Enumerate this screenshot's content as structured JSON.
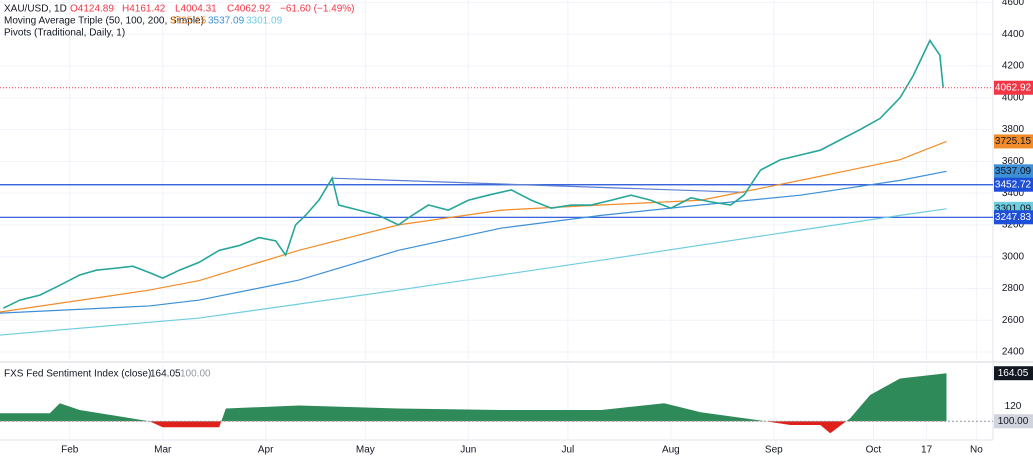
{
  "chart_data": [
    {
      "type": "line",
      "title": "XAU/USD, 1D",
      "annotations": [
        "O4124.89",
        "H4161.42",
        "L4004.31",
        "C4062.92",
        "−61.60 (−1.49%)"
      ],
      "indicator_label": "Moving Average Triple (50, 100, 200, Simple)",
      "pivot_label": "Pivots (Traditional, Daily, 1)",
      "xlim": [
        10,
        309
      ],
      "xticks": [
        {
          "value": 31,
          "label": "Feb"
        },
        {
          "value": 59,
          "label": "Mar"
        },
        {
          "value": 90,
          "label": "Apr"
        },
        {
          "value": 120,
          "label": "May"
        },
        {
          "value": 151,
          "label": "Jun"
        },
        {
          "value": 181,
          "label": "Jul"
        },
        {
          "value": 212,
          "label": "Aug"
        },
        {
          "value": 243,
          "label": "Sep"
        },
        {
          "value": 273,
          "label": "Oct"
        },
        {
          "value": 289,
          "label": "17"
        },
        {
          "value": 304,
          "label": "No"
        }
      ],
      "ylim": [
        2350,
        4615
      ],
      "yticks": [
        2400,
        2600,
        2800,
        3000,
        3200,
        3400,
        3600,
        3800,
        4000,
        4200,
        4400,
        4600
      ],
      "grid": true,
      "series": [
        {
          "color": "#26a69a",
          "x": [
            11,
            16,
            22,
            28,
            34,
            39,
            45,
            50,
            55,
            59,
            64,
            70,
            76,
            82,
            88,
            93,
            96,
            99,
            102,
            106,
            110,
            112,
            118,
            124,
            130,
            133,
            139,
            145,
            151,
            157,
            164,
            170,
            176,
            182,
            188,
            194,
            200,
            206,
            212,
            218,
            224,
            230,
            234,
            239,
            245,
            251,
            257,
            263,
            269,
            275,
            281,
            285,
            290,
            293,
            294
          ],
          "values": [
            2676,
            2727,
            2758,
            2820,
            2885,
            2915,
            2928,
            2940,
            2900,
            2865,
            2915,
            2965,
            3040,
            3070,
            3120,
            3100,
            3010,
            3200,
            3260,
            3355,
            3494,
            3325,
            3293,
            3260,
            3200,
            3245,
            3325,
            3293,
            3355,
            3387,
            3420,
            3355,
            3305,
            3325,
            3325,
            3355,
            3387,
            3355,
            3305,
            3370,
            3345,
            3325,
            3387,
            3545,
            3610,
            3640,
            3670,
            3735,
            3800,
            3870,
            4000,
            4140,
            4360,
            4268,
            4062.92
          ]
        },
        {
          "color": "#f28c28",
          "x": [
            10,
            55,
            70,
            100,
            130,
            161,
            191,
            221,
            251,
            281,
            295
          ],
          "values": [
            2652,
            2790,
            2850,
            3040,
            3200,
            3293,
            3325,
            3355,
            3480,
            3610,
            3725.15
          ]
        },
        {
          "color": "#3d8fd6",
          "x": [
            10,
            55,
            70,
            100,
            130,
            161,
            191,
            221,
            251,
            281,
            295
          ],
          "values": [
            2645,
            2690,
            2727,
            2853,
            3040,
            3180,
            3260,
            3325,
            3387,
            3480,
            3537.09
          ]
        },
        {
          "color": "#6fcde0",
          "x": [
            10,
            70,
            130,
            191,
            251,
            281,
            295
          ],
          "values": [
            2507,
            2614,
            2790,
            2978,
            3167,
            3260,
            3301.09
          ]
        }
      ],
      "pivots": {
        "color": "#1e4fd8",
        "values": [
          3452.72,
          3247.83
        ]
      },
      "trendline": {
        "color": "#5b7fd6",
        "x": [
          110,
          234
        ],
        "values": [
          3494,
          3405
        ]
      }
    },
    {
      "type": "area",
      "title": "FXS Fed Sentiment Index (close)",
      "ylim": [
        75,
        175
      ],
      "yticks": [
        120
      ],
      "baseline": {
        "value": 100,
        "label": "100.00"
      },
      "up_color": "#2f8a5a",
      "down_color": "#e0201b",
      "x": [
        10,
        25,
        28,
        34,
        55,
        59,
        62,
        76,
        78,
        100,
        130,
        161,
        191,
        210,
        221,
        239,
        248,
        257,
        260,
        266,
        272,
        281,
        295
      ],
      "values": [
        110.7,
        110.7,
        124,
        115,
        100,
        92,
        92,
        92,
        117,
        121,
        117,
        115,
        115,
        124,
        112,
        101,
        95,
        95,
        84,
        104,
        135,
        157,
        164.05
      ]
    }
  ]
}
